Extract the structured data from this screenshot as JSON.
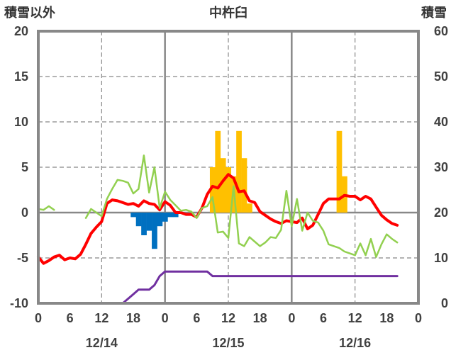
{
  "chart_data": {
    "type": "bar+line",
    "title": "中杵臼",
    "left_axis_label": "積雪以外",
    "right_axis_label": "積雪",
    "left_ylim": [
      -10,
      20
    ],
    "left_yticks": [
      "-10",
      "-5",
      "0",
      "5",
      "10",
      "15",
      "20"
    ],
    "right_ylim": [
      0,
      60
    ],
    "right_yticks": [
      "0",
      "10",
      "20",
      "30",
      "40",
      "50",
      "60"
    ],
    "x_hour_range": [
      0,
      72
    ],
    "x_tick_labels": [
      "0",
      "6",
      "12",
      "18",
      "0",
      "6",
      "12",
      "18",
      "0",
      "6",
      "12",
      "18",
      "0"
    ],
    "date_labels": [
      {
        "label": "12/14",
        "center_hour": 12
      },
      {
        "label": "12/15",
        "center_hour": 36
      },
      {
        "label": "12/16",
        "center_hour": 60
      }
    ],
    "grid": {
      "solid_vertical_hours": [
        24,
        48
      ],
      "dashed_vertical_hours": [
        12,
        36,
        60
      ],
      "dashed_horizontal_values": [
        -5,
        5,
        10,
        15
      ]
    },
    "series": [
      {
        "key": "precip_orange",
        "kind": "bar",
        "axis": "left",
        "color": "#ffc000",
        "points": [
          [
            33,
            5
          ],
          [
            34,
            9
          ],
          [
            35,
            6
          ],
          [
            36,
            5
          ],
          [
            37,
            4
          ],
          [
            38,
            9
          ],
          [
            39,
            6
          ],
          [
            40,
            1
          ],
          [
            57,
            9
          ],
          [
            58,
            4
          ]
        ]
      },
      {
        "key": "bars_blue",
        "kind": "bar",
        "axis": "left",
        "color": "#0070c0",
        "points": [
          [
            18,
            -0.5
          ],
          [
            19,
            -1.5
          ],
          [
            20,
            -2.5
          ],
          [
            21,
            -2
          ],
          [
            22,
            -4
          ],
          [
            23,
            -1.5
          ],
          [
            24,
            -1
          ],
          [
            25,
            -0.5
          ],
          [
            26,
            -0.5
          ]
        ]
      },
      {
        "key": "temp_red",
        "kind": "line",
        "axis": "left",
        "color": "#ff0000",
        "width": 4,
        "points": [
          [
            0,
            -4.9
          ],
          [
            1,
            -5.6
          ],
          [
            2,
            -5.3
          ],
          [
            3,
            -4.9
          ],
          [
            4,
            -4.7
          ],
          [
            5,
            -5.2
          ],
          [
            6,
            -5.0
          ],
          [
            7,
            -5.1
          ],
          [
            8,
            -4.6
          ],
          [
            9,
            -3.5
          ],
          [
            10,
            -2.3
          ],
          [
            11,
            -1.6
          ],
          [
            12,
            -1.0
          ],
          [
            13,
            1.0
          ],
          [
            14,
            1.4
          ],
          [
            15,
            1.3
          ],
          [
            16,
            1.1
          ],
          [
            17,
            0.9
          ],
          [
            18,
            1.0
          ],
          [
            19,
            0.7
          ],
          [
            20,
            1.3
          ],
          [
            21,
            1.0
          ],
          [
            22,
            0.9
          ],
          [
            23,
            0.3
          ],
          [
            24,
            1.2
          ],
          [
            25,
            0.8
          ],
          [
            26,
            0
          ],
          [
            27,
            0
          ],
          [
            28,
            -0.2
          ],
          [
            29,
            -0.2
          ],
          [
            30,
            -0.5
          ],
          [
            31,
            0.5
          ],
          [
            32,
            2.0
          ],
          [
            33,
            2.9
          ],
          [
            34,
            2.7
          ],
          [
            35,
            3.5
          ],
          [
            36,
            4.2
          ],
          [
            37,
            3.8
          ],
          [
            38,
            2.3
          ],
          [
            39,
            2.4
          ],
          [
            40,
            1.3
          ],
          [
            41,
            1.1
          ],
          [
            42,
            0.1
          ],
          [
            43,
            -0.3
          ],
          [
            44,
            -0.7
          ],
          [
            45,
            -1.0
          ],
          [
            46,
            -1.2
          ],
          [
            47,
            -0.9
          ],
          [
            48,
            -1.0
          ],
          [
            49,
            -1.1
          ],
          [
            50,
            -0.6
          ],
          [
            51,
            -1.8
          ],
          [
            52,
            -1.4
          ],
          [
            53,
            -0.2
          ],
          [
            54,
            1.0
          ],
          [
            55,
            1.5
          ],
          [
            56,
            1.5
          ],
          [
            57,
            1.5
          ],
          [
            58,
            1.9
          ],
          [
            59,
            1.8
          ],
          [
            60,
            1.8
          ],
          [
            61,
            1.4
          ],
          [
            62,
            1.8
          ],
          [
            63,
            1.5
          ],
          [
            64,
            0.6
          ],
          [
            65,
            -0.3
          ],
          [
            66,
            -0.8
          ],
          [
            67,
            -1.2
          ],
          [
            68,
            -1.4
          ]
        ]
      },
      {
        "key": "wind_green",
        "kind": "line",
        "axis": "left",
        "color": "#92d050",
        "width": 2.5,
        "points": [
          [
            0,
            0.4
          ],
          [
            1,
            0.3
          ],
          [
            2,
            0.7
          ],
          [
            3,
            0.3
          ],
          null,
          [
            9,
            -0.6
          ],
          [
            10,
            0.4
          ],
          [
            11,
            0
          ],
          [
            12,
            -0.4
          ],
          [
            13,
            1.5
          ],
          [
            14,
            2.6
          ],
          [
            15,
            3.6
          ],
          [
            16,
            3.5
          ],
          [
            17,
            3.3
          ],
          [
            18,
            2.1
          ],
          [
            19,
            2.6
          ],
          [
            20,
            6.3
          ],
          [
            21,
            2.2
          ],
          [
            22,
            5.0
          ],
          [
            23,
            0.5
          ],
          [
            24,
            2.3
          ],
          [
            25,
            1.4
          ],
          [
            26,
            0.8
          ],
          [
            27,
            0.2
          ],
          [
            28,
            0.3
          ],
          [
            29,
            0.1
          ],
          [
            30,
            -0.6
          ],
          [
            31,
            0.5
          ],
          [
            32,
            0.7
          ],
          [
            33,
            1.7
          ],
          [
            34,
            -2.2
          ],
          [
            35,
            -2.1
          ],
          [
            36,
            -2.8
          ],
          [
            37,
            2.9
          ],
          [
            38,
            -3.4
          ],
          [
            39,
            -3.7
          ],
          [
            40,
            -2.7
          ],
          [
            41,
            -3.2
          ],
          [
            42,
            -3.7
          ],
          [
            43,
            -3.3
          ],
          [
            44,
            -2.7
          ],
          [
            45,
            -2.8
          ],
          [
            46,
            -1.9
          ],
          [
            47,
            2.4
          ],
          [
            48,
            -1.5
          ],
          [
            49,
            1.5
          ],
          [
            50,
            -2.0
          ],
          [
            51,
            0
          ],
          [
            52,
            -0.9
          ],
          [
            53,
            -1.1
          ],
          [
            54,
            -2.0
          ],
          [
            55,
            -3.5
          ],
          [
            56,
            -3.7
          ],
          [
            57,
            -3.9
          ],
          [
            58,
            -4.3
          ],
          [
            59,
            -4.5
          ],
          [
            60,
            -4.7
          ],
          [
            61,
            -3.4
          ],
          [
            62,
            -4.7
          ],
          [
            63,
            -2.9
          ],
          [
            64,
            -4.9
          ],
          [
            65,
            -3.5
          ],
          [
            66,
            -2.4
          ],
          [
            67,
            -2.9
          ],
          [
            68,
            -3.3
          ]
        ]
      },
      {
        "key": "snow_purple",
        "kind": "line",
        "axis": "right",
        "color": "#7030a0",
        "width": 3,
        "points": [
          [
            0,
            0
          ],
          [
            16,
            0
          ],
          [
            17,
            1
          ],
          [
            18,
            2
          ],
          [
            19,
            3
          ],
          [
            20,
            3
          ],
          [
            21,
            3
          ],
          [
            22,
            4
          ],
          [
            23,
            6
          ],
          [
            24,
            7
          ],
          [
            25,
            7
          ],
          [
            26,
            7
          ],
          [
            27,
            7
          ],
          [
            28,
            7
          ],
          [
            29,
            7
          ],
          [
            30,
            7
          ],
          [
            31,
            7
          ],
          [
            32,
            7
          ],
          [
            33,
            6
          ],
          [
            34,
            6
          ],
          [
            35,
            6
          ],
          [
            36,
            6
          ],
          [
            68,
            6
          ]
        ]
      }
    ]
  }
}
